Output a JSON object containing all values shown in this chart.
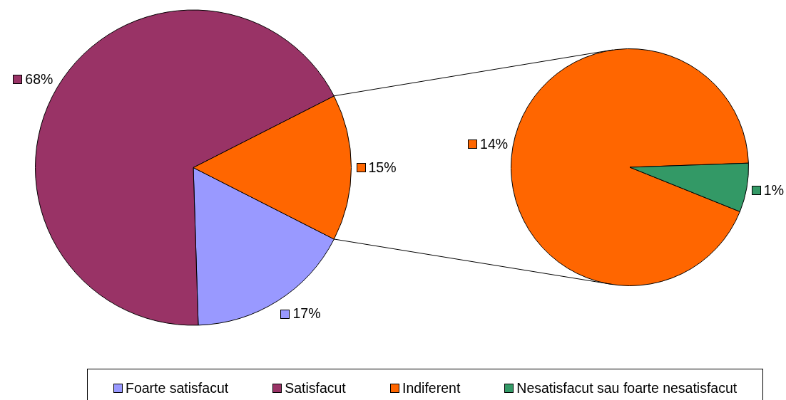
{
  "chart_data": [
    {
      "type": "pie",
      "categories": [
        "Foarte satisfacut",
        "Satisfacut",
        null
      ],
      "values": [
        17,
        68,
        15
      ],
      "colors": [
        "#9999ff",
        "#993366",
        "#ff6600"
      ],
      "value_labels": [
        "17%",
        "68%",
        "15%"
      ],
      "legend": "bottom"
    },
    {
      "type": "pie",
      "categories": [
        "Indiferent",
        "Nesatisfacut sau foarte nesatisfacut"
      ],
      "values": [
        14,
        1
      ],
      "colors": [
        "#ff6600",
        "#339966"
      ],
      "value_labels": [
        "14%",
        "1%"
      ],
      "legend": "bottom"
    }
  ]
}
